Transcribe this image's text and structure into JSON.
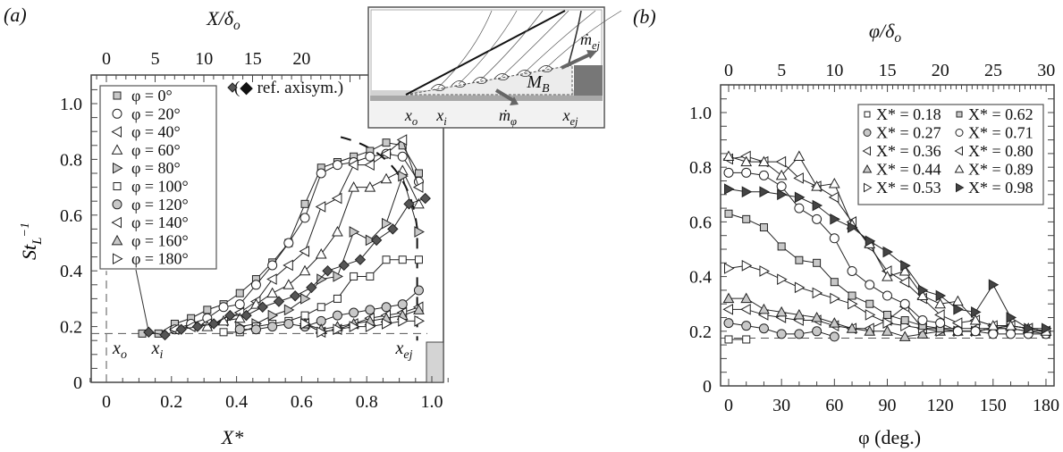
{
  "chart_data": [
    {
      "panel": "(a)",
      "type": "line",
      "xlabel": "X*",
      "ylabel": "St_L^-1",
      "top_xlabel": "X/δo",
      "xlim": [
        -0.05,
        1.05
      ],
      "ylim": [
        0,
        1.1
      ],
      "x_ticks": [
        "0",
        "0.2",
        "0.4",
        "0.6",
        "0.8",
        "1.0"
      ],
      "y_ticks": [
        "0",
        "0.2",
        "0.4",
        "0.6",
        "0.8",
        "1.0"
      ],
      "top_ticks": [
        "0",
        "5",
        "10",
        "15",
        "20"
      ],
      "reference_line_y": 0.175,
      "reference_line_x": 0,
      "annotations": [
        "xo",
        "xi",
        "xej",
        "(◆ ref. axisym.)"
      ],
      "inset_labels": [
        "xo",
        "xi",
        "ṁφ",
        "xej",
        "M_B",
        "ṁej"
      ],
      "series": [
        {
          "name": "φ = 0°",
          "marker": "square",
          "fill": "#c8c8c8",
          "x": [
            0.11,
            0.16,
            0.21,
            0.26,
            0.31,
            0.36,
            0.41,
            0.46,
            0.51,
            0.56,
            0.61,
            0.66,
            0.71,
            0.76,
            0.81,
            0.86,
            0.91,
            0.96
          ],
          "y": [
            0.175,
            0.175,
            0.21,
            0.23,
            0.26,
            0.28,
            0.32,
            0.37,
            0.43,
            0.5,
            0.64,
            0.77,
            0.79,
            0.81,
            0.83,
            0.86,
            0.85,
            0.75
          ]
        },
        {
          "name": "φ = 20°",
          "marker": "circle",
          "fill": "#ffffff",
          "x": [
            0.21,
            0.26,
            0.31,
            0.36,
            0.41,
            0.46,
            0.51,
            0.56,
            0.61,
            0.66,
            0.71,
            0.76,
            0.81,
            0.86,
            0.91,
            0.96
          ],
          "y": [
            0.19,
            0.21,
            0.23,
            0.27,
            0.28,
            0.35,
            0.42,
            0.5,
            0.59,
            0.75,
            0.78,
            0.79,
            0.81,
            0.82,
            0.81,
            0.72
          ]
        },
        {
          "name": "φ = 40°",
          "marker": "tri-left",
          "fill": "#ffffff",
          "x": [
            0.21,
            0.26,
            0.31,
            0.36,
            0.41,
            0.46,
            0.51,
            0.56,
            0.61,
            0.66,
            0.71,
            0.76,
            0.81,
            0.86,
            0.91,
            0.96
          ],
          "y": [
            0.19,
            0.2,
            0.21,
            0.22,
            0.25,
            0.29,
            0.37,
            0.42,
            0.47,
            0.63,
            0.66,
            0.78,
            0.78,
            0.82,
            0.87,
            0.7
          ]
        },
        {
          "name": "φ = 60°",
          "marker": "tri-up",
          "fill": "#ffffff",
          "x": [
            0.31,
            0.36,
            0.41,
            0.46,
            0.51,
            0.56,
            0.61,
            0.66,
            0.71,
            0.76,
            0.81,
            0.86,
            0.91,
            0.96
          ],
          "y": [
            0.2,
            0.22,
            0.23,
            0.28,
            0.32,
            0.35,
            0.4,
            0.46,
            0.54,
            0.7,
            0.7,
            0.73,
            0.76,
            0.64
          ]
        },
        {
          "name": "φ = 80°",
          "marker": "tri-right",
          "fill": "#c8c8c8",
          "x": [
            0.41,
            0.46,
            0.51,
            0.56,
            0.61,
            0.66,
            0.71,
            0.76,
            0.81,
            0.86,
            0.91,
            0.96
          ],
          "y": [
            0.2,
            0.21,
            0.24,
            0.26,
            0.3,
            0.37,
            0.38,
            0.54,
            0.51,
            0.57,
            0.74,
            0.54
          ]
        },
        {
          "name": "φ = 100°",
          "marker": "square",
          "fill": "#ffffff",
          "x": [
            0.36,
            0.41,
            0.46,
            0.51,
            0.56,
            0.61,
            0.66,
            0.71,
            0.76,
            0.81,
            0.86,
            0.91,
            0.96
          ],
          "y": [
            0.18,
            0.18,
            0.2,
            0.21,
            0.22,
            0.24,
            0.27,
            0.3,
            0.38,
            0.38,
            0.44,
            0.44,
            0.44
          ]
        },
        {
          "name": "φ = 120°",
          "marker": "circle",
          "fill": "#c8c8c8",
          "x": [
            0.41,
            0.46,
            0.51,
            0.56,
            0.61,
            0.66,
            0.71,
            0.76,
            0.81,
            0.86,
            0.91,
            0.96
          ],
          "y": [
            0.19,
            0.19,
            0.2,
            0.21,
            0.2,
            0.22,
            0.24,
            0.25,
            0.26,
            0.27,
            0.28,
            0.33
          ]
        },
        {
          "name": "φ = 140°",
          "marker": "tri-left",
          "fill": "#ffffff",
          "x": [
            0.61,
            0.66,
            0.71,
            0.76,
            0.81,
            0.86,
            0.91,
            0.96
          ],
          "y": [
            0.21,
            0.18,
            0.19,
            0.21,
            0.23,
            0.24,
            0.25,
            0.27
          ]
        },
        {
          "name": "φ = 160°",
          "marker": "tri-up",
          "fill": "#c8c8c8",
          "x": [
            0.61,
            0.66,
            0.71,
            0.76,
            0.81,
            0.86,
            0.91,
            0.96
          ],
          "y": [
            0.21,
            0.19,
            0.2,
            0.21,
            0.22,
            0.23,
            0.24,
            0.26
          ]
        },
        {
          "name": "φ = 180°",
          "marker": "tri-right",
          "fill": "#ffffff",
          "x": [
            0.61,
            0.66,
            0.71,
            0.76,
            0.81,
            0.86,
            0.91,
            0.96
          ],
          "y": [
            0.21,
            0.18,
            0.19,
            0.2,
            0.2,
            0.21,
            0.22,
            0.22
          ]
        },
        {
          "name": "ref. axisym.",
          "marker": "diamond",
          "fill": "#555555",
          "x": [
            0.13,
            0.18,
            0.23,
            0.28,
            0.33,
            0.38,
            0.43,
            0.48,
            0.53,
            0.58,
            0.63,
            0.68,
            0.73,
            0.78,
            0.83,
            0.88,
            0.93,
            0.98
          ],
          "y": [
            0.18,
            0.17,
            0.19,
            0.2,
            0.21,
            0.24,
            0.24,
            0.27,
            0.29,
            0.31,
            0.34,
            0.4,
            0.42,
            0.44,
            0.51,
            0.55,
            0.64,
            0.66
          ]
        }
      ]
    },
    {
      "panel": "(b)",
      "type": "line",
      "xlabel": "φ (deg.)",
      "ylabel": "",
      "top_xlabel": "φ/δo",
      "xlim": [
        -5,
        185
      ],
      "ylim": [
        0,
        1.1
      ],
      "x_ticks": [
        "0",
        "30",
        "60",
        "90",
        "120",
        "150",
        "180"
      ],
      "y_ticks": [
        "0",
        "0.2",
        "0.4",
        "0.6",
        "0.8",
        "1.0"
      ],
      "top_ticks": [
        "0",
        "5",
        "10",
        "15",
        "20",
        "25",
        "30"
      ],
      "reference_line_y": 0.175,
      "series": [
        {
          "name": "X* = 0.18",
          "marker": "square",
          "fill": "#ffffff",
          "x": [
            0,
            10
          ],
          "y": [
            0.17,
            0.17
          ]
        },
        {
          "name": "X* = 0.27",
          "marker": "circle",
          "fill": "#c8c8c8",
          "x": [
            0,
            10,
            20,
            30,
            40,
            50,
            60
          ],
          "y": [
            0.23,
            0.22,
            0.21,
            0.19,
            0.19,
            0.2,
            0.18
          ]
        },
        {
          "name": "X* = 0.36",
          "marker": "tri-left",
          "fill": "#ffffff",
          "x": [
            0,
            10,
            20,
            30,
            40,
            50,
            60,
            70,
            80,
            90,
            100,
            110,
            120,
            130,
            140,
            150,
            160,
            170,
            180
          ],
          "y": [
            0.28,
            0.28,
            0.26,
            0.25,
            0.24,
            0.24,
            0.22,
            0.21,
            0.21,
            0.24,
            0.29,
            0.21,
            0.21,
            0.21,
            0.21,
            0.21,
            0.22,
            0.21,
            0.2
          ]
        },
        {
          "name": "X* = 0.44",
          "marker": "tri-up",
          "fill": "#c8c8c8",
          "x": [
            0,
            10,
            20,
            30,
            40,
            50,
            60,
            70,
            80,
            90,
            100,
            110,
            120,
            130,
            140,
            150,
            160,
            170,
            180
          ],
          "y": [
            0.32,
            0.32,
            0.28,
            0.27,
            0.26,
            0.25,
            0.23,
            0.21,
            0.2,
            0.2,
            0.18,
            0.19,
            0.2,
            0.2,
            0.2,
            0.21,
            0.22,
            0.21,
            0.2
          ]
        },
        {
          "name": "X* = 0.53",
          "marker": "tri-right",
          "fill": "#ffffff",
          "x": [
            0,
            10,
            20,
            30,
            40,
            50,
            60,
            70,
            80,
            90,
            100,
            110,
            120,
            130,
            140,
            150,
            160,
            170,
            180
          ],
          "y": [
            0.43,
            0.44,
            0.42,
            0.39,
            0.36,
            0.34,
            0.32,
            0.3,
            0.26,
            0.23,
            0.22,
            0.21,
            0.2,
            0.2,
            0.2,
            0.21,
            0.21,
            0.2,
            0.2
          ]
        },
        {
          "name": "X* = 0.62",
          "marker": "square",
          "fill": "#c8c8c8",
          "x": [
            0,
            10,
            20,
            30,
            40,
            50,
            60,
            70,
            80,
            90,
            100,
            110,
            120,
            130,
            140,
            150,
            160,
            170,
            180
          ],
          "y": [
            0.63,
            0.61,
            0.58,
            0.51,
            0.46,
            0.45,
            0.38,
            0.33,
            0.3,
            0.26,
            0.24,
            0.22,
            0.21,
            0.2,
            0.2,
            0.21,
            0.21,
            0.2,
            0.19
          ]
        },
        {
          "name": "X* = 0.71",
          "marker": "circle",
          "fill": "#ffffff",
          "x": [
            0,
            10,
            20,
            30,
            40,
            50,
            60,
            70,
            80,
            90,
            100,
            110,
            120,
            130,
            140,
            150,
            160,
            170,
            180
          ],
          "y": [
            0.78,
            0.78,
            0.77,
            0.73,
            0.65,
            0.61,
            0.54,
            0.42,
            0.37,
            0.33,
            0.3,
            0.24,
            0.23,
            0.2,
            0.2,
            0.19,
            0.19,
            0.19,
            0.19
          ]
        },
        {
          "name": "X* = 0.80",
          "marker": "tri-left",
          "fill": "#ffffff",
          "x": [
            0,
            10,
            20,
            30,
            40,
            50,
            60,
            70,
            80,
            90,
            100,
            110,
            120,
            130,
            140,
            150,
            160,
            170,
            180
          ],
          "y": [
            0.83,
            0.84,
            0.82,
            0.82,
            0.76,
            0.73,
            0.69,
            0.6,
            0.51,
            0.42,
            0.38,
            0.32,
            0.26,
            0.23,
            0.24,
            0.22,
            0.22,
            0.21,
            0.2
          ]
        },
        {
          "name": "X* = 0.89",
          "marker": "tri-up",
          "fill": "#ffffff",
          "x": [
            0,
            10,
            20,
            30,
            40,
            50,
            60,
            70,
            80,
            90,
            100,
            110,
            120,
            130,
            140,
            150,
            160,
            170,
            180
          ],
          "y": [
            0.84,
            0.82,
            0.82,
            0.77,
            0.84,
            0.73,
            0.74,
            0.59,
            0.52,
            0.4,
            0.42,
            0.33,
            0.3,
            0.31,
            0.24,
            0.22,
            0.22,
            0.21,
            0.2
          ]
        },
        {
          "name": "X* = 0.98",
          "marker": "tri-right",
          "fill": "#444444",
          "x": [
            0,
            10,
            20,
            30,
            40,
            50,
            60,
            70,
            80,
            90,
            100,
            110,
            120,
            130,
            140,
            150,
            160,
            170,
            180
          ],
          "y": [
            0.72,
            0.71,
            0.71,
            0.7,
            0.69,
            0.66,
            0.61,
            0.58,
            0.53,
            0.49,
            0.44,
            0.35,
            0.33,
            0.28,
            0.27,
            0.37,
            0.25,
            0.21,
            0.21
          ]
        }
      ]
    }
  ],
  "labels": {
    "panel_a": "(a)",
    "panel_b": "(b)",
    "a_top_axis": "X/δ",
    "a_top_axis_sub": "o",
    "a_xlabel": "X*",
    "a_ylabel_main": "St",
    "a_ylabel_sub": "L",
    "a_ylabel_sup": "−1",
    "a_ref": "(◆ ref. axisym.)",
    "xo": "x",
    "xo_sub": "o",
    "xi": "x",
    "xi_sub": "i",
    "xej": "x",
    "xej_sub": "ej",
    "b_top_axis": "φ/δ",
    "b_top_axis_sub": "o",
    "b_xlabel": "φ (deg.)",
    "inset_mphi": "ṁ",
    "inset_mphi_sub": "φ",
    "inset_mej": "ṁ",
    "inset_mej_sub": "ej",
    "inset_mb": "M",
    "inset_mb_sub": "B"
  }
}
